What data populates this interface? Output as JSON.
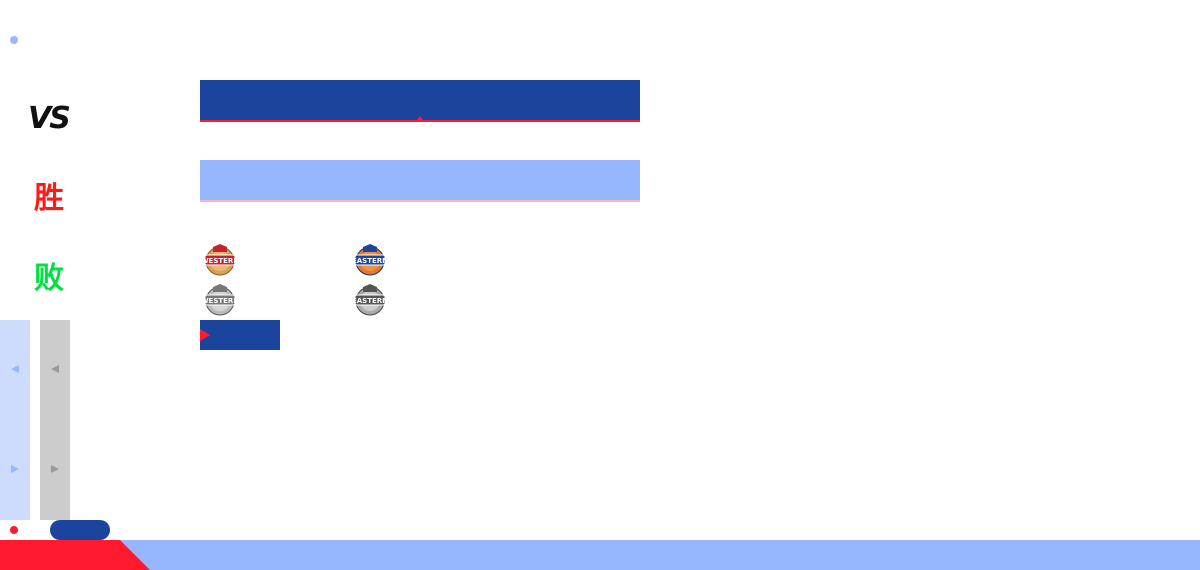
{
  "labels": {
    "vs": "VS",
    "win": "胜",
    "lose": "败"
  },
  "logos": {
    "western_color": "WESTERN",
    "eastern_color": "EASTERN",
    "western_gray": "WESTERN",
    "eastern_gray": "EASTERN"
  },
  "icons": {
    "scroll_up": "triangle-left-icon",
    "scroll_down": "triangle-right-icon",
    "play": "triangle-right-icon"
  },
  "colors": {
    "primary_blue": "#1b449c",
    "light_blue": "#96b6fd",
    "pale_blue": "#cddcfd",
    "accent_red": "#ff1a30",
    "win_red": "#ff1a1a",
    "lose_green": "#00e040",
    "gray": "#cccccc"
  }
}
